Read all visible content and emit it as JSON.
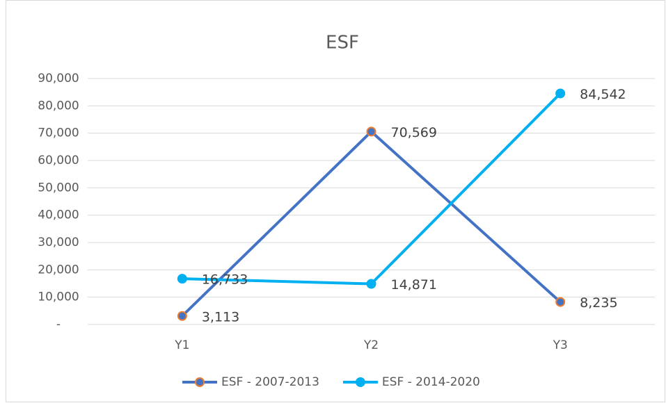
{
  "chart_data": {
    "type": "line",
    "title": "ESF",
    "categories": [
      "Y1",
      "Y2",
      "Y3"
    ],
    "series": [
      {
        "name": "ESF - 2007-2013",
        "color": "#4472c4",
        "marker_edge": "#ed7d31",
        "values": [
          3113,
          70569,
          8235
        ],
        "value_labels": [
          "3,113",
          "70,569",
          "8,235"
        ]
      },
      {
        "name": "ESF - 2014-2020",
        "color": "#00b0f0",
        "marker_edge": "#00b0f0",
        "values": [
          16733,
          14871,
          84542
        ],
        "value_labels": [
          "16,733",
          "14,871",
          "84,542"
        ]
      }
    ],
    "ylim": [
      0,
      90000
    ],
    "yticks": [
      {
        "value": 0,
        "label": "-"
      },
      {
        "value": 10000,
        "label": "10,000"
      },
      {
        "value": 20000,
        "label": "20,000"
      },
      {
        "value": 30000,
        "label": "30,000"
      },
      {
        "value": 40000,
        "label": "40,000"
      },
      {
        "value": 50000,
        "label": "50,000"
      },
      {
        "value": 60000,
        "label": "60,000"
      },
      {
        "value": 70000,
        "label": "70,000"
      },
      {
        "value": 80000,
        "label": "80,000"
      },
      {
        "value": 90000,
        "label": "90,000"
      }
    ],
    "grid": true,
    "legend": "bottom"
  }
}
